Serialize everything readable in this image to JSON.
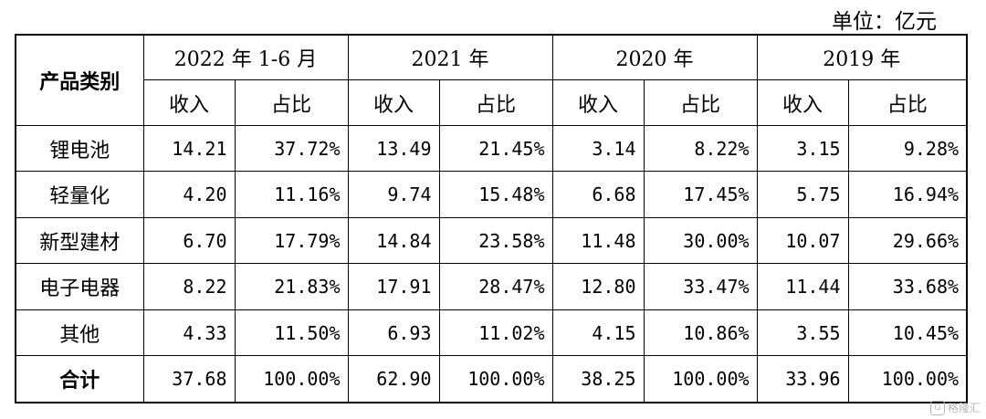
{
  "unit_label": "单位：亿元",
  "header": {
    "category": "产品类别",
    "periods": [
      "2022 年 1-6 月",
      "2021 年",
      "2020 年",
      "2019 年"
    ],
    "revenue": "收入",
    "share": "占比"
  },
  "rows": [
    {
      "category": "锂电池",
      "values": [
        "14.21",
        "37.72%",
        "13.49",
        "21.45%",
        "3.14",
        "8.22%",
        "3.15",
        "9.28%"
      ]
    },
    {
      "category": "轻量化",
      "values": [
        "4.20",
        "11.16%",
        "9.74",
        "15.48%",
        "6.68",
        "17.45%",
        "5.75",
        "16.94%"
      ]
    },
    {
      "category": "新型建材",
      "values": [
        "6.70",
        "17.79%",
        "14.84",
        "23.58%",
        "11.48",
        "30.00%",
        "10.07",
        "29.66%"
      ]
    },
    {
      "category": "电子电器",
      "values": [
        "8.22",
        "21.83%",
        "17.91",
        "28.47%",
        "12.80",
        "33.47%",
        "11.44",
        "33.68%"
      ]
    },
    {
      "category": "其他",
      "values": [
        "4.33",
        "11.50%",
        "6.93",
        "11.02%",
        "4.15",
        "10.86%",
        "3.55",
        "10.45%"
      ]
    },
    {
      "category": "合计",
      "values": [
        "37.68",
        "100.00%",
        "62.90",
        "100.00%",
        "38.25",
        "100.00%",
        "33.96",
        "100.00%"
      ]
    }
  ],
  "watermark": "格隆汇"
}
